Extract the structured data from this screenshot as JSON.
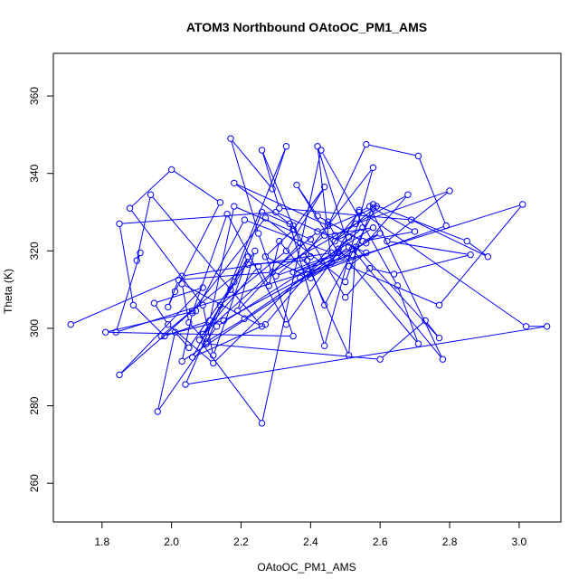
{
  "chart_data": {
    "type": "line",
    "title": "ATOM3 Northbound OAtoOC_PM1_AMS",
    "xlabel": "OAtoOC_PM1_AMS",
    "ylabel": "Theta (K)",
    "xlim": [
      1.66,
      3.12
    ],
    "ylim": [
      250,
      371
    ],
    "xticks": [
      "1.8",
      "2.0",
      "2.2",
      "2.4",
      "2.6",
      "2.8",
      "3.0"
    ],
    "yticks": [
      "260",
      "280",
      "300",
      "320",
      "340",
      "360"
    ],
    "grid": false,
    "legend": "none",
    "series": [
      {
        "color": "#0000ff",
        "marker": "open-circle",
        "x": [
          1.71,
          2.03,
          2.46,
          2.21,
          2.07,
          1.81,
          2.35,
          2.25,
          2.17,
          2.29,
          2.33,
          2.1,
          2.6,
          2.73,
          2.77,
          2.53,
          2.51,
          2.38,
          2.58,
          2.44,
          2.34,
          2.18,
          2.45,
          2.56,
          2.71,
          2.79,
          2.37,
          2.12,
          1.99,
          1.95,
          2.09,
          1.85,
          2.06,
          2.27,
          2.5,
          2.58,
          2.85,
          2.91,
          2.69,
          2.31,
          2.26,
          2.37,
          2.19,
          2.24,
          2.08,
          2.26,
          2.43,
          2.65,
          2.71,
          2.48,
          2.51,
          2.33,
          2.16,
          2.06,
          2.03,
          2.52,
          2.78,
          2.57,
          2.54,
          2.27,
          2.06,
          2.22,
          2.12,
          2.09,
          1.88,
          2.0,
          2.14,
          2.01,
          1.99,
          2.02,
          2.29,
          2.53,
          2.8,
          2.62,
          2.86,
          2.64,
          2.57,
          2.5,
          2.4,
          2.18,
          2.11,
          1.98,
          1.89,
          1.85,
          2.3,
          2.56,
          2.51,
          2.77,
          3.01,
          1.84,
          1.91,
          1.9,
          1.94,
          2.17,
          2.26,
          2.03,
          2.05,
          2.1,
          2.21,
          2.51,
          2.42,
          2.46,
          2.54,
          3.02,
          3.08,
          2.04,
          2.14,
          2.33,
          2.44,
          2.35,
          2.27,
          2.4,
          2.6,
          2.55,
          2.45,
          2.47,
          2.68,
          2.56,
          2.35,
          2.52,
          2.49,
          2.15,
          1.97,
          2.22,
          2.39,
          2.44,
          2.59,
          2.47,
          2.55,
          2.39,
          2.31,
          2.28,
          2.25,
          2.09,
          2.42,
          2.58,
          2.7,
          2.55,
          2.42,
          2.36,
          2.48,
          2.3,
          2.44,
          2.58,
          2.13,
          1.96,
          2.01,
          2.05,
          2.18,
          2.26,
          2.35,
          2.4
        ],
        "y": [
          301.0,
          313.5,
          319.5,
          328.0,
          304.5,
          299.0,
          298.0,
          324.5,
          349.0,
          336.0,
          347.0,
          296.0,
          292.0,
          302.0,
          297.5,
          321.0,
          293.0,
          318.5,
          341.5,
          295.5,
          327.0,
          337.5,
          326.5,
          347.5,
          344.5,
          326.5,
          313.0,
          291.0,
          301.0,
          306.5,
          310.5,
          288.0,
          304.5,
          328.5,
          312.0,
          332.0,
          322.5,
          318.5,
          328.0,
          331.0,
          346.0,
          322.0,
          304.5,
          320.0,
          297.0,
          275.5,
          346.0,
          311.0,
          296.0,
          320.5,
          323.5,
          301.0,
          329.5,
          304.0,
          291.5,
          320.5,
          292.0,
          331.5,
          330.0,
          301.0,
          292.5,
          318.5,
          293.0,
          306.0,
          331.0,
          341.0,
          332.5,
          309.5,
          305.5,
          312.5,
          314.5,
          327.0,
          335.5,
          322.5,
          319.0,
          314.0,
          315.5,
          308.0,
          323.0,
          331.5,
          302.0,
          298.0,
          306.0,
          327.0,
          330.0,
          319.5,
          316.0,
          306.0,
          332.0,
          299.0,
          319.5,
          317.5,
          334.5,
          310.0,
          300.5,
          311.5,
          301.5,
          296.5,
          302.5,
          321.0,
          347.0,
          317.0,
          330.5,
          300.5,
          300.5,
          285.5,
          306.0,
          320.0,
          336.5,
          325.5,
          318.5,
          313.0,
          324.5,
          322.5,
          327.5,
          324.0,
          334.5,
          322.0,
          314.5,
          319.0,
          318.5,
          302.0,
          298.0,
          316.5,
          317.5,
          306.0,
          331.5,
          322.5,
          326.0,
          314.0,
          322.5,
          311.0,
          316.0,
          298.5,
          325.0,
          331.0,
          325.0,
          322.5,
          329.0,
          337.0,
          319.5,
          313.5,
          324.0,
          326.0,
          300.5,
          278.5,
          299.0,
          295.0,
          312.0,
          330.0,
          326.5,
          318.5
        ]
      }
    ]
  }
}
